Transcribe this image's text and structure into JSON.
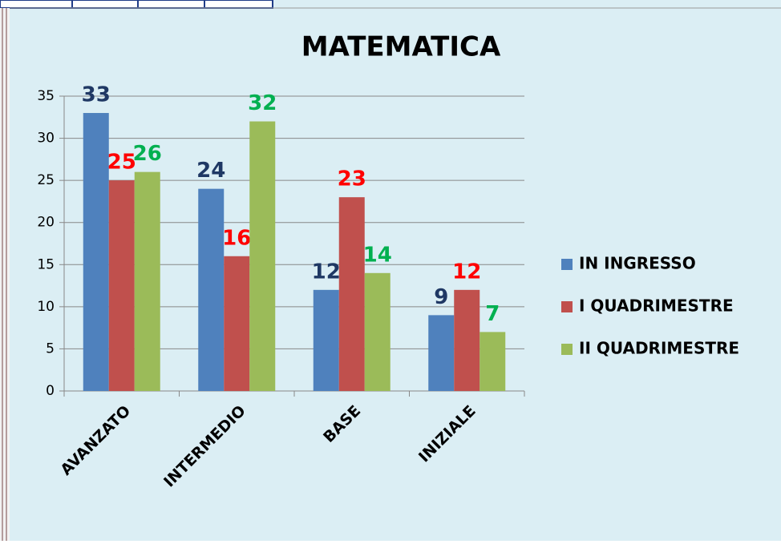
{
  "chart_data": {
    "type": "bar",
    "title": "MATEMATICA",
    "categories": [
      "AVANZATO",
      "INTERMEDIO",
      "BASE",
      "INIZIALE"
    ],
    "series": [
      {
        "name": "IN INGRESSO",
        "color": "#4f81bd",
        "label_color": "#1f3864",
        "values": [
          33,
          24,
          12,
          9
        ]
      },
      {
        "name": "I QUADRIMESTRE",
        "color": "#c0504d",
        "label_color": "#ff0000",
        "values": [
          25,
          16,
          23,
          12
        ]
      },
      {
        "name": "II QUADRIMESTRE",
        "color": "#9bbb59",
        "label_color": "#00b050",
        "values": [
          26,
          32,
          14,
          7
        ]
      }
    ],
    "ylim": [
      0,
      35
    ],
    "yticks": [
      0,
      5,
      10,
      15,
      20,
      25,
      30,
      35
    ],
    "grid": true,
    "legend": "right"
  }
}
